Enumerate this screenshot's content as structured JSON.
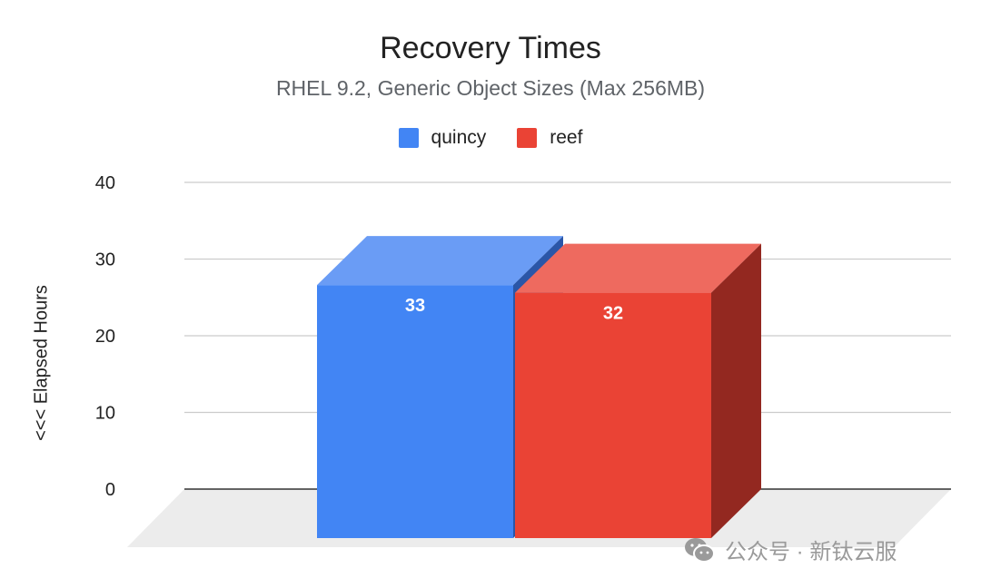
{
  "chart_data": {
    "type": "bar",
    "title": "Recovery Times",
    "subtitle": "RHEL 9.2, Generic Object Sizes (Max 256MB)",
    "ylabel": "<<<   Elapsed Hours",
    "xlabel": "",
    "ylim": [
      0,
      40
    ],
    "yticks": [
      "0",
      "10",
      "20",
      "30",
      "40"
    ],
    "grid": true,
    "legend_position": "top",
    "three_d": true,
    "series": [
      {
        "name": "quincy",
        "value": 33,
        "label": "33",
        "color": "#4285f4",
        "top_color": "#6a9cf5",
        "side_color": "#2a56a8"
      },
      {
        "name": "reef",
        "value": 32,
        "label": "32",
        "color": "#ea4335",
        "top_color": "#ee6a5f",
        "side_color": "#932820"
      }
    ]
  },
  "watermark": {
    "icon": "wechat-icon",
    "text": "公众号 · 新钛云服"
  }
}
